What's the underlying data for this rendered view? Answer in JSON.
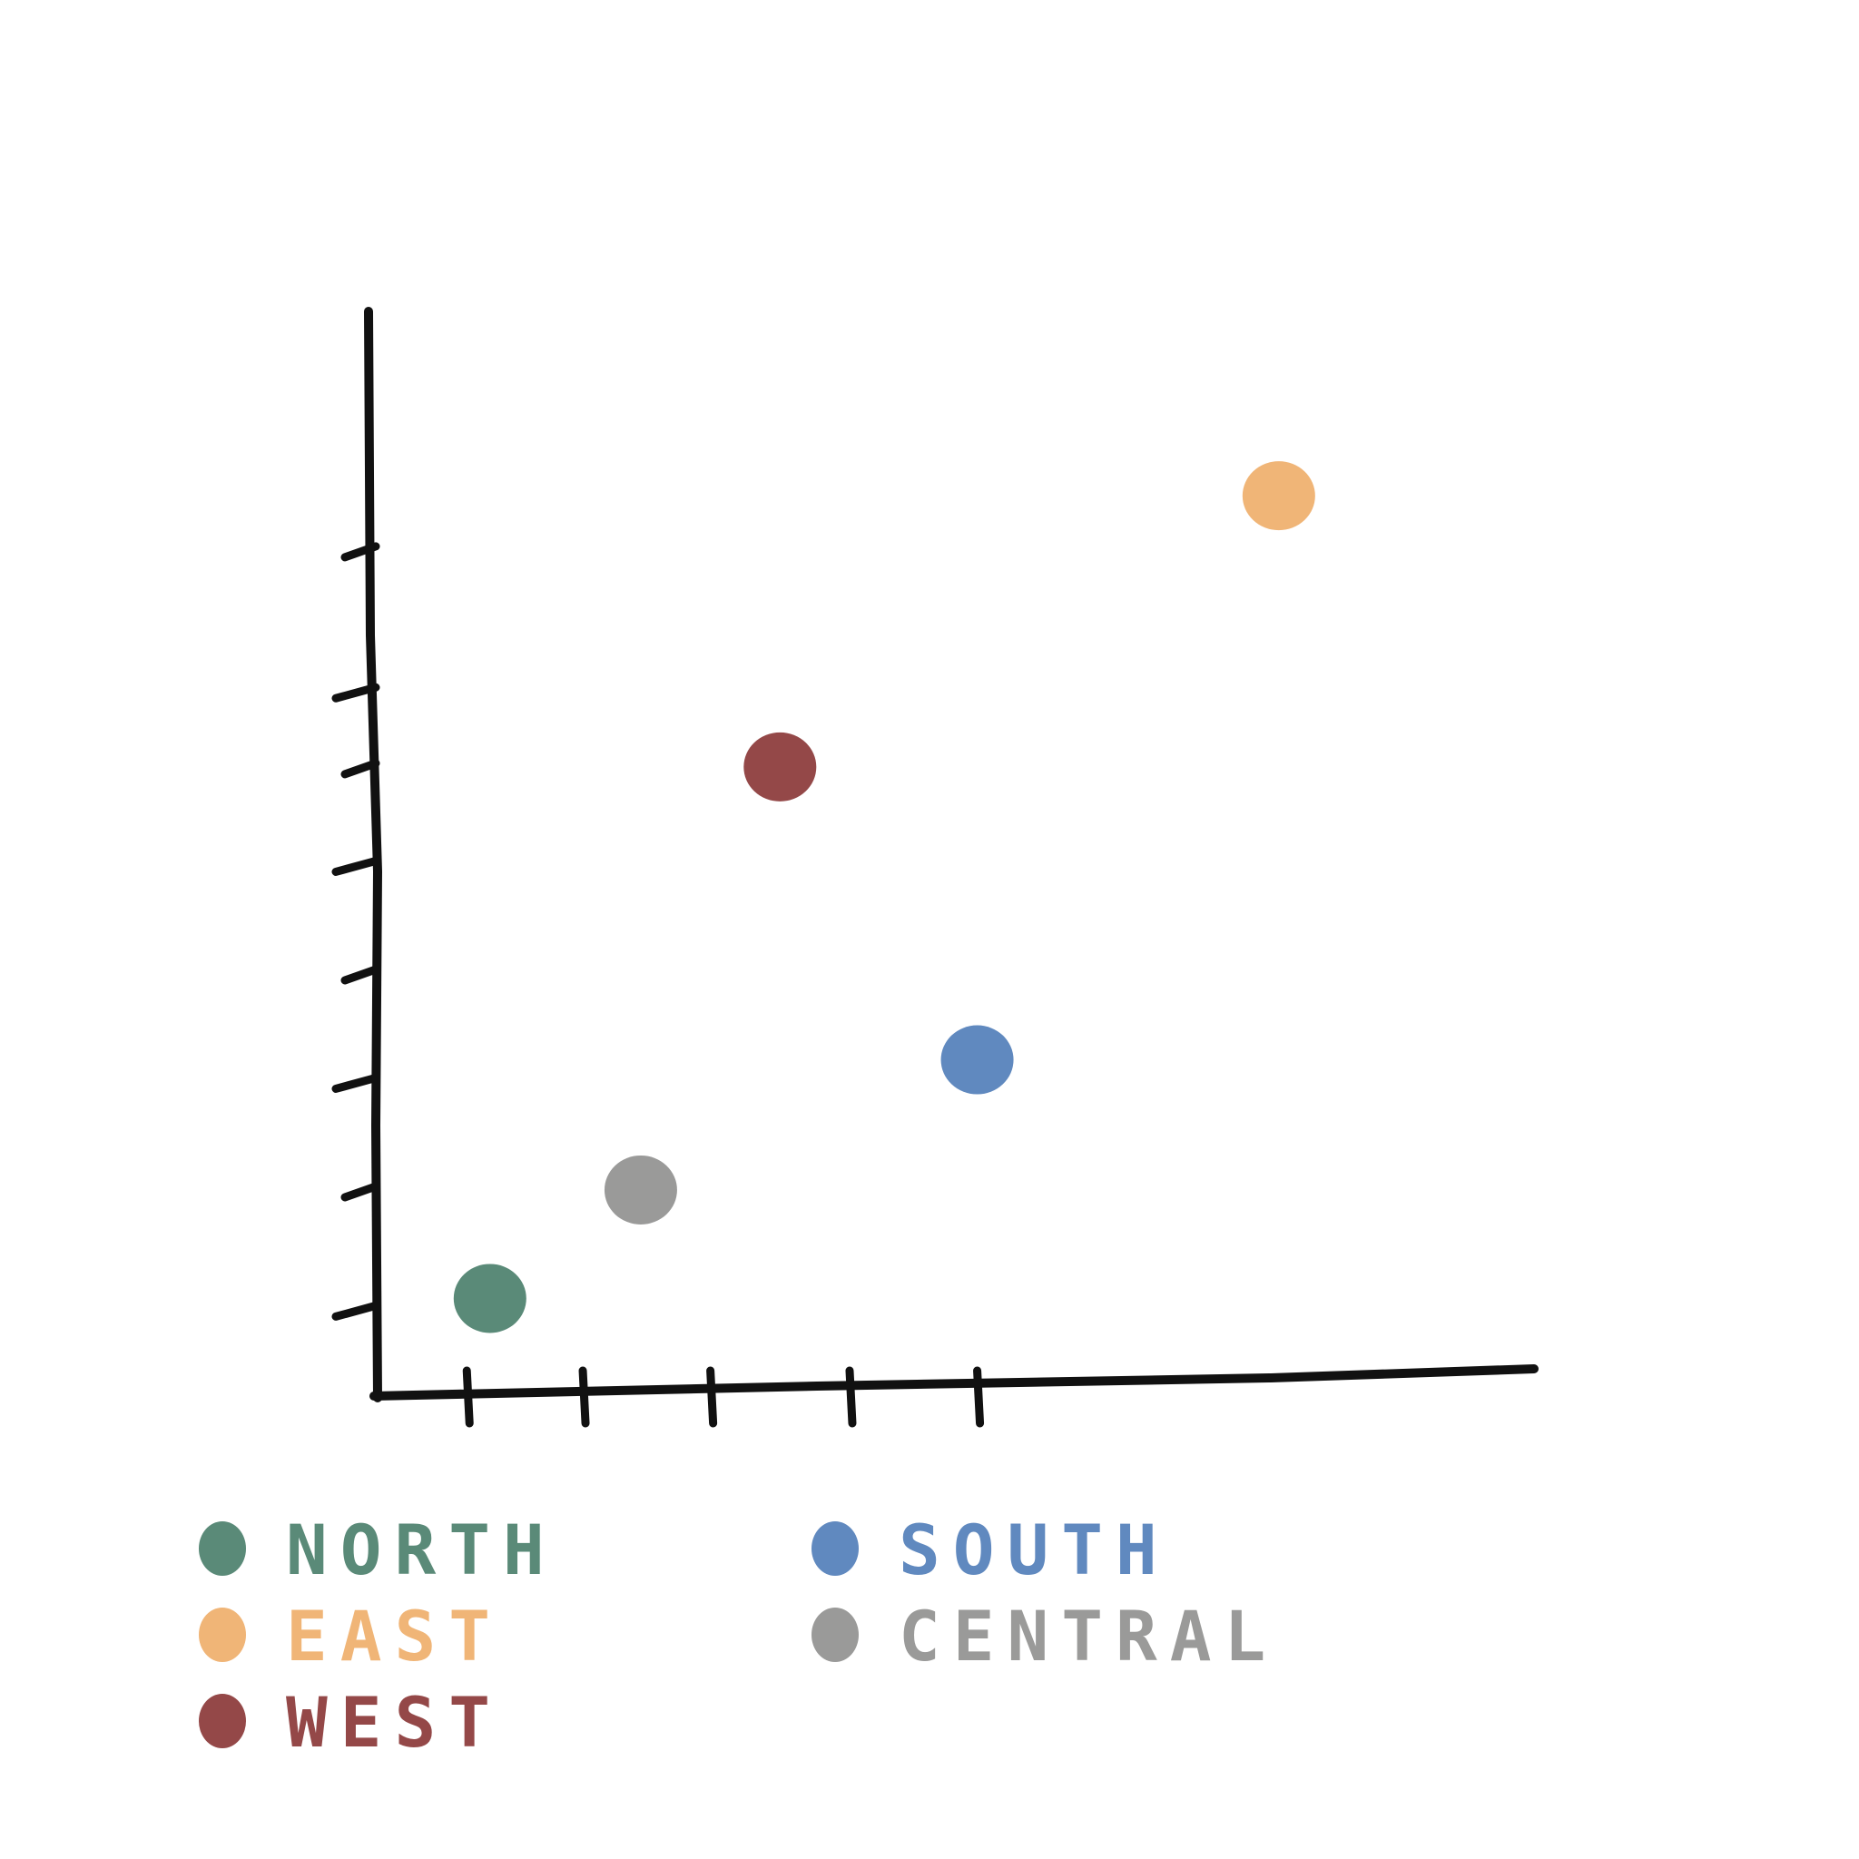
{
  "chart_data": {
    "type": "scatter",
    "title": "",
    "xlabel": "",
    "ylabel": "",
    "xlim": [
      0,
      10
    ],
    "ylim": [
      0,
      10
    ],
    "grid": false,
    "legend_placement": "bottom",
    "series": [
      {
        "name": "North",
        "color": "#5a8a78",
        "points": [
          [
            1.0,
            0.9
          ]
        ]
      },
      {
        "name": "East",
        "color": "#f0b577",
        "points": [
          [
            7.8,
            8.3
          ]
        ]
      },
      {
        "name": "West",
        "color": "#944848",
        "points": [
          [
            3.5,
            5.8
          ]
        ]
      },
      {
        "name": "South",
        "color": "#6089bf",
        "points": [
          [
            5.2,
            3.1
          ]
        ]
      },
      {
        "name": "Central",
        "color": "#9a9a99",
        "points": [
          [
            2.3,
            1.9
          ]
        ]
      }
    ]
  }
}
